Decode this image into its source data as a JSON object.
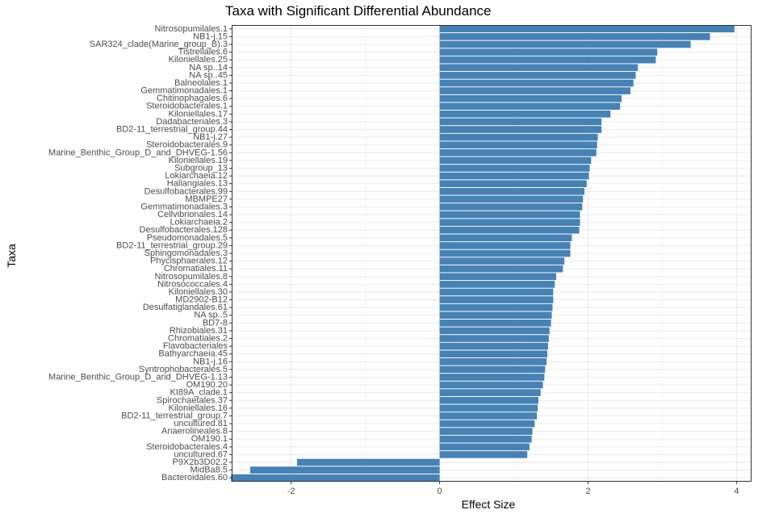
{
  "chart_data": {
    "type": "bar",
    "orientation": "horizontal",
    "title": "Taxa with Significant Differential Abundance",
    "xlabel": "Effect Size",
    "ylabel": "Taxa",
    "xlim": [
      -2.8,
      4.2
    ],
    "xticks": [
      -2,
      0,
      2,
      4
    ],
    "grid": true,
    "bar_color": "#4682b4",
    "categories": [
      "Nitrosopumilales.1",
      "NB1-j.15",
      "SAR324_clade(Marine_group_B).3",
      "Tistrellales.6",
      "Kiloniellales.25",
      "NA sp..14",
      "NA sp..45",
      "Balneolales.1",
      "Gemmatimonadales.1",
      "Chitinophagales.6",
      "Steroidobacterales.1",
      "Kiloniellales.17",
      "Dadabacteriales.3",
      "BD2-11_terrestrial_group.44",
      "NB1-j.27",
      "Steroidobacterales.9",
      "Marine_Benthic_Group_D_and_DHVEG-1.56",
      "Kiloniellales.19",
      "Subgroup_13",
      "Lokiarchaeia.12",
      "Haliangiales.13",
      "Desulfobacterales.99",
      "MBMPE27",
      "Gemmatimonadales.3",
      "Cellvibrionales.14",
      "Lokiarchaeia.2",
      "Desulfobacterales.128",
      "Pseudomonadales.5",
      "BD2-11_terrestrial_group.29",
      "Sphingomonadales.3",
      "Phycisphaerales.12",
      "Chromatiales.11",
      "Nitrosopumilales.8",
      "Nitrosococcales.4",
      "Kiloniellales.30",
      "MD2902-B12",
      "Desulfatiglandales.61",
      "NA sp..5",
      "BD7-8",
      "Rhizobiales.31",
      "Chromatiales.2",
      "Flavobacteriales",
      "Bathyarchaeia.45",
      "NB1-j.16",
      "Syntrophobacterales.5",
      "Marine_Benthic_Group_D_and_DHVEG-1.13",
      "OM190.20",
      "KI89A_clade.1",
      "Spirochaetales.37",
      "Kiloniellales.16",
      "BD2-11_terrestrial_group.7",
      "uncultured.81",
      "Anaerolineales.8",
      "OM190.1",
      "Steroidobacterales.4",
      "uncultured.67",
      "P9X2b3D02.2",
      "MidBa8.5",
      "Bacteroidales.60"
    ],
    "values": [
      3.97,
      3.64,
      3.38,
      2.93,
      2.91,
      2.67,
      2.64,
      2.61,
      2.57,
      2.45,
      2.43,
      2.3,
      2.18,
      2.18,
      2.13,
      2.12,
      2.11,
      2.04,
      2.02,
      2.01,
      1.98,
      1.95,
      1.93,
      1.92,
      1.89,
      1.89,
      1.88,
      1.78,
      1.76,
      1.76,
      1.68,
      1.66,
      1.57,
      1.55,
      1.53,
      1.53,
      1.52,
      1.51,
      1.5,
      1.48,
      1.47,
      1.46,
      1.45,
      1.44,
      1.42,
      1.41,
      1.39,
      1.36,
      1.33,
      1.32,
      1.31,
      1.28,
      1.25,
      1.24,
      1.21,
      1.18,
      -1.92,
      -2.55,
      -2.81
    ]
  }
}
